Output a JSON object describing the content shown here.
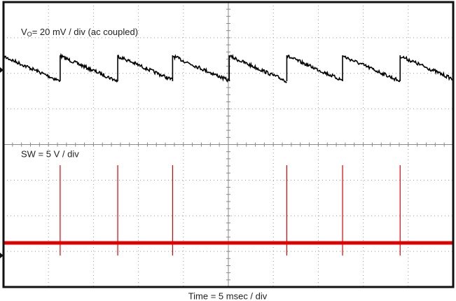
{
  "chart_data": {
    "type": "scope",
    "xlim": [
      0,
      50
    ],
    "series": [
      {
        "name_parts": [
          "V",
          "O",
          "= 20 mV / div (ac coupled)"
        ],
        "color": "#000000",
        "x": [
          6.3,
          12.7,
          18.8,
          25.1,
          31.5,
          37.7,
          44.1
        ]
      },
      {
        "name_parts": [
          "SW = 5 V / div"
        ],
        "color": "#e00000",
        "x": [
          6.3,
          12.7,
          18.8,
          31.5,
          37.7,
          44.1
        ]
      }
    ],
    "xlabel": "Time = 5 msec / div"
  }
}
